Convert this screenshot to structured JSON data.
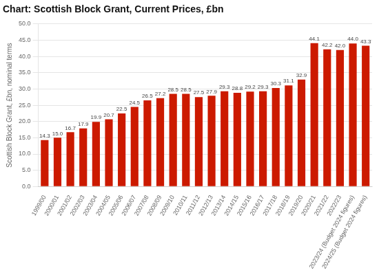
{
  "chart_data": {
    "type": "bar",
    "title": "Chart: Scottish Block Grant, Current Prices, £bn",
    "ylabel": "Scottish Block Grant, £bn, nominal terms",
    "categories": [
      "1999/00",
      "2000/01",
      "2001/02",
      "2002/03",
      "2003/04",
      "2004/05",
      "2005/06",
      "2006/07",
      "2007/08",
      "2008/09",
      "2009/10",
      "2010/11",
      "2011/12",
      "2012/13",
      "2013/14",
      "2014/15",
      "2015/16",
      "2016/17",
      "2017/18",
      "2018/19",
      "2019/20",
      "2020/21",
      "2021/22",
      "2022/23",
      "2023/24 (Budget 2024 figures)",
      "2024/25 (Budget 2024 figures)"
    ],
    "values": [
      14.3,
      15.0,
      16.7,
      17.9,
      19.9,
      20.7,
      22.5,
      24.5,
      26.5,
      27.2,
      28.5,
      28.5,
      27.5,
      27.9,
      29.3,
      28.8,
      29.2,
      29.3,
      30.3,
      31.1,
      32.9,
      44.1,
      42.2,
      42.0,
      44.0,
      43.3
    ],
    "value_labels": [
      "14.3",
      "15.0",
      "16.7",
      "17.9",
      "19.9",
      "20.7",
      "22.5",
      "24.5",
      "26.5",
      "27.2",
      "28.5",
      "28.5",
      "27.5",
      "27.9",
      "29.3",
      "28.8",
      "29.2",
      "29.3",
      "30.3",
      "31.1",
      "32.9",
      "44.1",
      "42.2",
      "42.0",
      "44.0",
      "43.3"
    ],
    "data_labels": true,
    "color": "#cc1a00",
    "ylim": [
      0,
      50
    ],
    "yticks": [
      {
        "value": 0,
        "label": "0.0"
      },
      {
        "value": 5,
        "label": "5.0"
      },
      {
        "value": 10,
        "label": "10.0"
      },
      {
        "value": 15,
        "label": "15.0"
      },
      {
        "value": 20,
        "label": "20.0"
      },
      {
        "value": 25,
        "label": "25.0"
      },
      {
        "value": 30,
        "label": "30.0"
      },
      {
        "value": 35,
        "label": "35.0"
      },
      {
        "value": 40,
        "label": "40.0"
      },
      {
        "value": 45,
        "label": "45.0"
      },
      {
        "value": 50,
        "label": "50.0"
      }
    ],
    "grid": true
  }
}
